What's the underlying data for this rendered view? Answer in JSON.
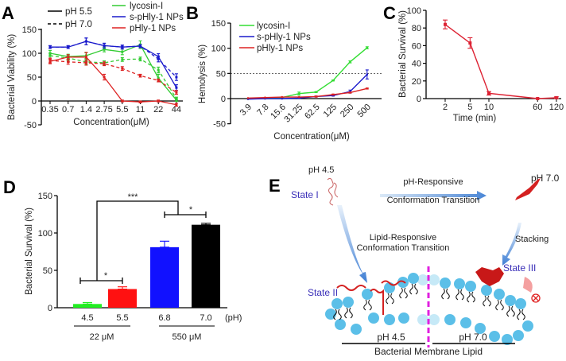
{
  "panel_labels": {
    "a": "A",
    "b": "B",
    "c": "C",
    "d": "D",
    "e": "E"
  },
  "chart_data": [
    {
      "id": "A",
      "type": "line",
      "title": "",
      "xlabel": "Concentration(μM)",
      "ylabel": "Bacterial Viability (%)",
      "categories": [
        "0.35",
        "0.7",
        "1.4",
        "2.75",
        "5.5",
        "11",
        "22",
        "44"
      ],
      "ylim": [
        -50,
        150
      ],
      "yticks": [
        "-50",
        "0",
        "50",
        "100",
        "150"
      ],
      "line_legend": [
        {
          "label": "pH 5.5",
          "dash": false
        },
        {
          "label": "pH 7.0",
          "dash": true
        }
      ],
      "color_legend": [
        {
          "label": "lycosin-I",
          "color": "#33cc33"
        },
        {
          "label": "s-pHly-1 NPs",
          "color": "#1a1acc"
        },
        {
          "label": "pHly-1 NPs",
          "color": "#dd2222"
        }
      ],
      "series": [
        {
          "name": "lycosin-I pH 5.5",
          "color": "#33cc33",
          "dash": false,
          "values": [
            100,
            93,
            95,
            108,
            103,
            118,
            48,
            2
          ],
          "errors": [
            6,
            5,
            6,
            5,
            6,
            8,
            8,
            3
          ]
        },
        {
          "name": "lycosin-I pH 7.0",
          "color": "#33cc33",
          "dash": true,
          "values": [
            95,
            90,
            82,
            80,
            87,
            88,
            65,
            5
          ],
          "errors": [
            5,
            5,
            5,
            4,
            4,
            4,
            6,
            3
          ]
        },
        {
          "name": "s-pHly-1 NPs pH 5.5",
          "color": "#1a1acc",
          "dash": false,
          "values": [
            113,
            113,
            125,
            116,
            113,
            115,
            93,
            28
          ],
          "errors": [
            3,
            3,
            7,
            5,
            4,
            3,
            6,
            6
          ]
        },
        {
          "name": "s-pHly-1 NPs pH 7.0",
          "color": "#1a1acc",
          "dash": true,
          "values": [
            113,
            113,
            125,
            116,
            113,
            115,
            88,
            50
          ],
          "errors": [
            3,
            3,
            7,
            5,
            4,
            3,
            6,
            7
          ]
        },
        {
          "name": "pHly-1 NPs pH 5.5",
          "color": "#dd2222",
          "dash": false,
          "values": [
            83,
            92,
            92,
            50,
            0,
            -2,
            0,
            -8
          ],
          "errors": [
            5,
            5,
            10,
            6,
            2,
            2,
            2,
            3
          ]
        },
        {
          "name": "pHly-1 NPs pH 7.0",
          "color": "#dd2222",
          "dash": true,
          "values": [
            85,
            82,
            80,
            78,
            68,
            53,
            43,
            18
          ],
          "errors": [
            5,
            5,
            5,
            4,
            4,
            3,
            3,
            4
          ]
        }
      ]
    },
    {
      "id": "B",
      "type": "line",
      "title": "",
      "xlabel": "Concentration(μM)",
      "ylabel": "Hemolysis (%)",
      "categories": [
        "3.9",
        "7.8",
        "15.6",
        "31.25",
        "62.5",
        "125",
        "250",
        "500"
      ],
      "ylim": [
        -50,
        150
      ],
      "yticks": [
        "-50",
        "0",
        "50",
        "100",
        "150"
      ],
      "reference_line": 50,
      "legend": "top-left",
      "series": [
        {
          "name": "lycosin-I",
          "color": "#33dd33",
          "values": [
            0,
            1,
            2,
            10,
            13,
            36,
            73,
            101
          ],
          "errors": [
            0,
            0,
            1,
            3,
            1,
            1,
            2,
            2
          ]
        },
        {
          "name": "s-pHly-1 NPs",
          "color": "#1a1acc",
          "values": [
            -1,
            0,
            0,
            1,
            4,
            6,
            14,
            48
          ],
          "errors": [
            0,
            0,
            0,
            1,
            1,
            1,
            3,
            9
          ]
        },
        {
          "name": "pHly-1 NPs",
          "color": "#dd2222",
          "values": [
            1,
            2,
            3,
            3,
            4,
            8,
            12,
            20
          ],
          "errors": [
            0,
            0,
            0,
            0,
            1,
            1,
            1,
            1
          ]
        }
      ]
    },
    {
      "id": "C",
      "type": "line",
      "title": "",
      "xlabel": "Time (min)",
      "ylabel": "Bacterial Survival (%)",
      "x_scale": "log",
      "x": [
        2,
        5,
        10,
        60,
        120
      ],
      "xticks": [
        "2",
        "5",
        "10",
        "60",
        "120"
      ],
      "ylim": [
        0,
        100
      ],
      "yticks": [
        "0",
        "20",
        "40",
        "60",
        "80",
        "100"
      ],
      "series": [
        {
          "name": "survival",
          "color": "#dd2233",
          "values": [
            84,
            63,
            6,
            0,
            1
          ],
          "errors": [
            5,
            6,
            2,
            0.5,
            1
          ]
        }
      ]
    },
    {
      "id": "D",
      "type": "bar",
      "title": "",
      "xlabel": "",
      "ylabel": "Bacterial Survival (%)",
      "categories": [
        "4.5",
        "5.5",
        "6.8",
        "7.0"
      ],
      "x_unit": "(pH)",
      "groups": [
        {
          "label": "22  μM",
          "members": [
            0,
            1
          ]
        },
        {
          "label": "550 μM",
          "members": [
            2,
            3
          ]
        }
      ],
      "values": [
        5,
        25,
        81,
        111
      ],
      "errors": [
        2,
        3,
        8,
        2
      ],
      "colors": [
        "#22ee22",
        "#ff1111",
        "#1111ff",
        "#000000"
      ],
      "ylim": [
        0,
        150
      ],
      "yticks": [
        "0",
        "50",
        "100",
        "150"
      ],
      "significance": [
        {
          "from": 0,
          "to": 1,
          "label": "*"
        },
        {
          "from": 2,
          "to": 3,
          "label": "*"
        },
        {
          "from": "group1",
          "to": "group2",
          "label": "***"
        }
      ]
    }
  ],
  "diagram": {
    "ph_left_top": "pH 4.5",
    "ph_right_top": "pH 7.0",
    "state1": "State I",
    "state2": "State II",
    "state3": "State III",
    "arrow_top_line1": "pH-Responsive",
    "arrow_top_line2": "Conformation Transition",
    "lipid_line1": "Lipid-Responsive",
    "lipid_line2": "Conformation Transition",
    "stacking": "Stacking",
    "membrane_left": "pH 4.5",
    "membrane_right": "pH 7.0",
    "membrane_caption": "Bacterial Membrane Lipid",
    "colors": {
      "lipid_head": "#5bbfe8",
      "peptide": "#d42020",
      "divider": "#e020e0",
      "state_text": "#3a2fb8"
    }
  }
}
